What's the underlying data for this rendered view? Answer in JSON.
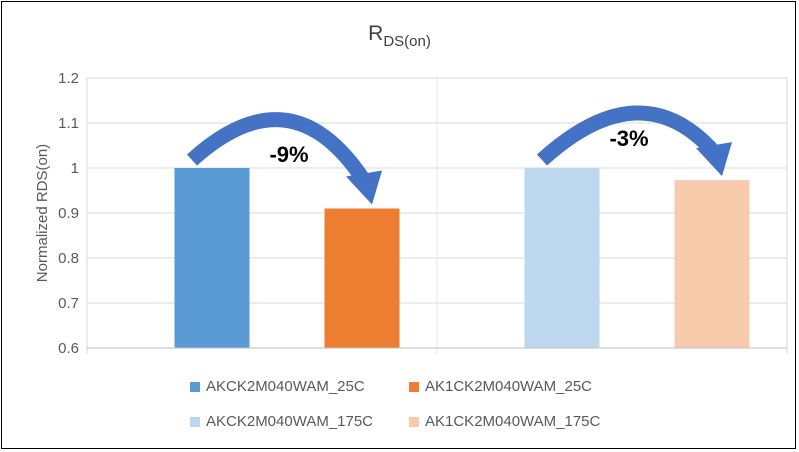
{
  "chart_data": {
    "type": "bar",
    "title_main": "R",
    "title_sub": "DS(on)",
    "ylabel": "Normalized RDS(on)",
    "xlabel": "",
    "ylim": [
      0.6,
      1.2
    ],
    "yticks": [
      "0.6",
      "0.7",
      "0.8",
      "0.9",
      "1",
      "1.1",
      "1.2"
    ],
    "grid": true,
    "legend_position": "bottom",
    "groups": [
      {
        "bars": [
          {
            "name": "AKCK2M040WAM_25C",
            "value": 1.0,
            "color": "#5B9BD5"
          },
          {
            "name": "AK1CK2M040WAM_25C",
            "value": 0.91,
            "color": "#ED7D31"
          }
        ],
        "annotation": "-9%"
      },
      {
        "bars": [
          {
            "name": "AKCK2M040WAM_175C",
            "value": 1.0,
            "color": "#BDD7EE"
          },
          {
            "name": "AK1CK2M040WAM_175C",
            "value": 0.973,
            "color": "#F8CBAD"
          }
        ],
        "annotation": "-3%"
      }
    ],
    "legend": [
      {
        "name": "AKCK2M040WAM_25C",
        "color": "#5B9BD5"
      },
      {
        "name": "AK1CK2M040WAM_25C",
        "color": "#ED7D31"
      },
      {
        "name": "AKCK2M040WAM_175C",
        "color": "#BDD7EE"
      },
      {
        "name": "AK1CK2M040WAM_175C",
        "color": "#F8CBAD"
      }
    ],
    "arrow_color": "#4472C4"
  }
}
